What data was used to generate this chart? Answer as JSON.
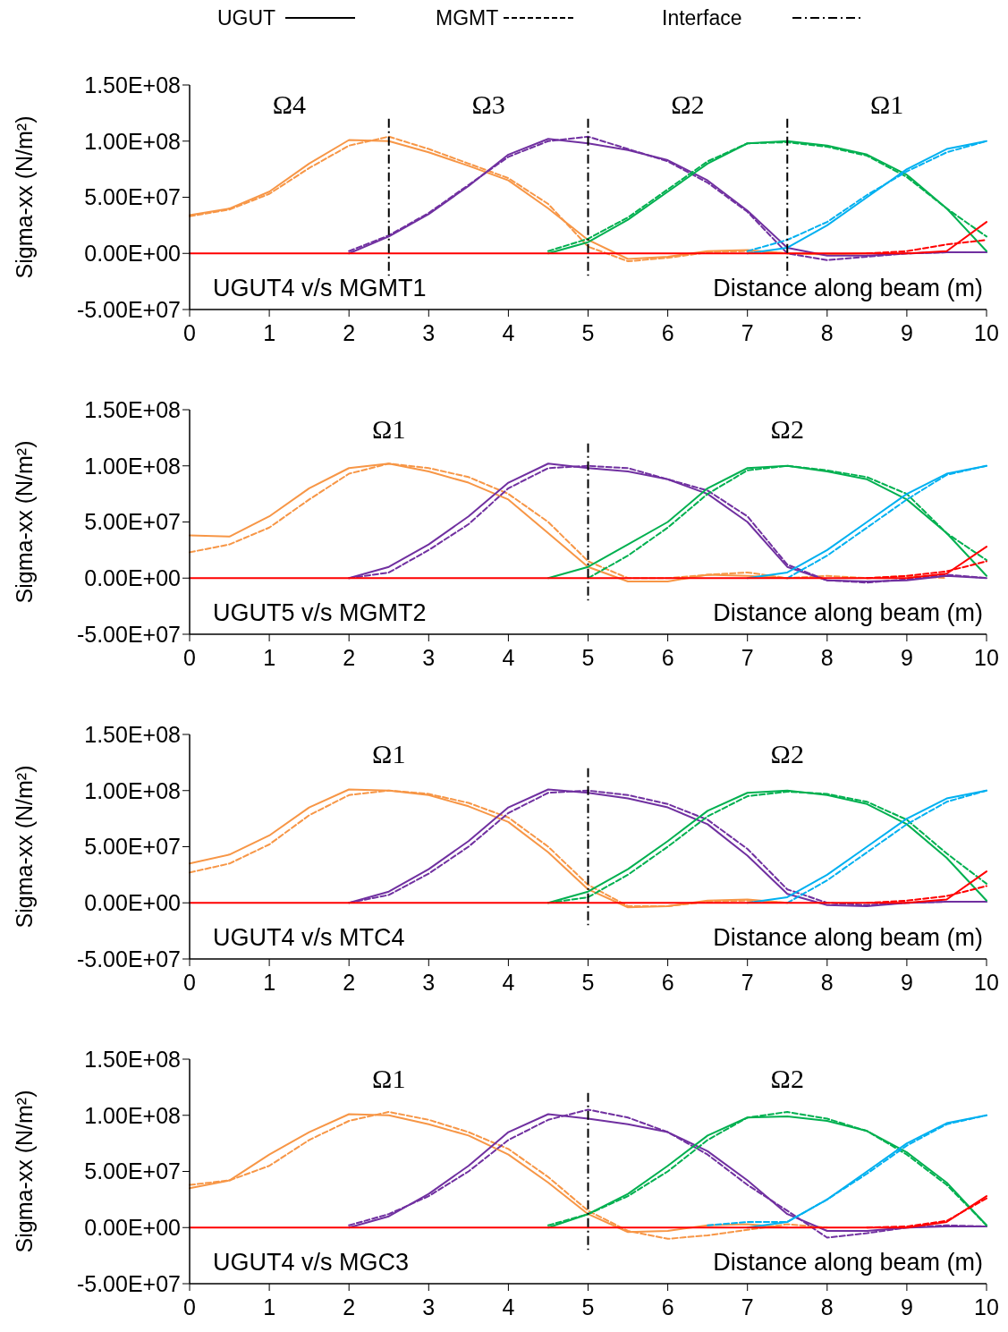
{
  "chart_data": [
    {
      "type": "line",
      "ylabel": "Sigma-xx (N/m²)",
      "xlabel": "Distance along beam (m)",
      "xlim": [
        0,
        10
      ],
      "xticks": [
        0,
        1,
        2,
        3,
        4,
        5,
        6,
        7,
        8,
        9,
        10
      ],
      "ylim": [
        -50000000.0,
        150000000.0
      ],
      "yticks": [
        {
          "value": -50000000.0,
          "label": "-5.00E+07"
        },
        {
          "value": 0,
          "label": "0.00E+00"
        },
        {
          "value": 50000000.0,
          "label": "5.00E+07"
        },
        {
          "value": 100000000.0,
          "label": "1.00E+08"
        },
        {
          "value": 150000000.0,
          "label": "1.50E+08"
        }
      ],
      "grid": false,
      "marker": "none",
      "x": [
        0,
        0.5,
        1,
        1.5,
        2,
        2.5,
        3,
        3.5,
        4,
        4.5,
        5,
        5.5,
        6,
        6.5,
        7,
        7.5,
        8,
        8.5,
        9,
        9.5,
        10
      ],
      "annotations": [
        "UGUT4 v/s MGMT1",
        "Ω4",
        "Ω3",
        "Ω2",
        "Ω1",
        "UGUT",
        "MGMT",
        "Interface"
      ],
      "ref_lines": [
        {
          "axis": "x",
          "value": 2.5,
          "color": "#000000",
          "line_style": "dashdot"
        },
        {
          "axis": "x",
          "value": 5,
          "color": "#000000",
          "line_style": "dashdot"
        },
        {
          "axis": "x",
          "value": 7.5,
          "color": "#000000",
          "line_style": "dashdot"
        }
      ],
      "series": [
        {
          "color": "#f79646",
          "line_style": "solid",
          "values": [
            34000000.0,
            40000000.0,
            55000000.0,
            80000000.0,
            101000000.0,
            100000000.0,
            90000000.0,
            78000000.0,
            65000000.0,
            40000000.0,
            12000000.0,
            -5000000.0,
            -3000000.0,
            2000000.0,
            3000000.0,
            0,
            -1000000.0,
            0,
            null,
            null,
            null
          ]
        },
        {
          "color": "#f79646",
          "line_style": "dashed",
          "values": [
            33000000.0,
            39000000.0,
            53000000.0,
            76000000.0,
            96000000.0,
            104000000.0,
            93000000.0,
            80000000.0,
            67000000.0,
            44000000.0,
            6000000.0,
            -7000000.0,
            -4000000.0,
            1000000.0,
            2000000.0,
            0,
            null,
            null,
            null,
            null,
            null
          ]
        },
        {
          "color": "#7030a0",
          "line_style": "solid",
          "values": [
            null,
            null,
            null,
            null,
            0,
            15000000.0,
            35000000.0,
            60000000.0,
            88000000.0,
            102000000.0,
            98000000.0,
            92000000.0,
            83000000.0,
            65000000.0,
            38000000.0,
            5000000.0,
            -2000000.0,
            -2000000.0,
            0,
            1000000.0,
            1000000.0
          ]
        },
        {
          "color": "#7030a0",
          "line_style": "dashed",
          "values": [
            null,
            null,
            null,
            null,
            2000000.0,
            16000000.0,
            36000000.0,
            61000000.0,
            86000000.0,
            100000000.0,
            104000000.0,
            93000000.0,
            82000000.0,
            63000000.0,
            37000000.0,
            0,
            -6000000.0,
            -3000000.0,
            0,
            1000000.0,
            1000000.0
          ]
        },
        {
          "color": "#00b050",
          "line_style": "solid",
          "values": [
            null,
            null,
            null,
            null,
            null,
            null,
            null,
            null,
            null,
            0,
            10000000.0,
            30000000.0,
            55000000.0,
            80000000.0,
            98000000.0,
            100000000.0,
            96000000.0,
            88000000.0,
            70000000.0,
            40000000.0,
            2000000.0
          ]
        },
        {
          "color": "#00b050",
          "line_style": "dashed",
          "values": [
            null,
            null,
            null,
            null,
            null,
            null,
            null,
            null,
            null,
            2000000.0,
            13000000.0,
            32000000.0,
            57000000.0,
            82000000.0,
            98000000.0,
            99000000.0,
            95000000.0,
            87000000.0,
            68000000.0,
            40000000.0,
            15000000.0
          ]
        },
        {
          "color": "#00b0f0",
          "line_style": "solid",
          "values": [
            null,
            null,
            null,
            null,
            null,
            null,
            null,
            null,
            null,
            null,
            null,
            null,
            null,
            null,
            0,
            5000000.0,
            25000000.0,
            50000000.0,
            75000000.0,
            93000000.0,
            100000000.0
          ]
        },
        {
          "color": "#00b0f0",
          "line_style": "dashed",
          "values": [
            null,
            null,
            null,
            null,
            null,
            null,
            null,
            null,
            null,
            null,
            null,
            null,
            null,
            null,
            2000000.0,
            12000000.0,
            28000000.0,
            52000000.0,
            73000000.0,
            90000000.0,
            100000000.0
          ]
        },
        {
          "color": "#ff0000",
          "line_style": "solid",
          "values": [
            0,
            0,
            0,
            0,
            0,
            0,
            0,
            0,
            0,
            0,
            0,
            0,
            0,
            0,
            0,
            0,
            0,
            0,
            0,
            2000000.0,
            28000000.0
          ]
        },
        {
          "color": "#ff0000",
          "line_style": "dashed",
          "values": [
            null,
            null,
            null,
            null,
            null,
            null,
            null,
            null,
            null,
            null,
            null,
            null,
            null,
            null,
            null,
            null,
            null,
            0,
            2000000.0,
            8000000.0,
            12000000.0
          ]
        }
      ]
    },
    {
      "type": "line",
      "ylabel": "Sigma-xx (N/m²)",
      "xlabel": "Distance along beam (m)",
      "xlim": [
        0,
        10
      ],
      "xticks": [
        0,
        1,
        2,
        3,
        4,
        5,
        6,
        7,
        8,
        9,
        10
      ],
      "ylim": [
        -50000000.0,
        150000000.0
      ],
      "yticks": [
        {
          "value": -50000000.0,
          "label": "-5.00E+07"
        },
        {
          "value": 0,
          "label": "0.00E+00"
        },
        {
          "value": 50000000.0,
          "label": "5.00E+07"
        },
        {
          "value": 100000000.0,
          "label": "1.00E+08"
        },
        {
          "value": 150000000.0,
          "label": "1.50E+08"
        }
      ],
      "grid": false,
      "marker": "none",
      "x": [
        0,
        0.5,
        1,
        1.5,
        2,
        2.5,
        3,
        3.5,
        4,
        4.5,
        5,
        5.5,
        6,
        6.5,
        7,
        7.5,
        8,
        8.5,
        9,
        9.5,
        10
      ],
      "annotations": [
        "UGUT5 v/s MGMT2",
        "Ω1",
        "Ω2"
      ],
      "ref_lines": [
        {
          "axis": "x",
          "value": 5,
          "color": "#000000",
          "line_style": "dashdot"
        }
      ],
      "series": [
        {
          "color": "#f79646",
          "line_style": "solid",
          "values": [
            38000000.0,
            37000000.0,
            55000000.0,
            80000000.0,
            98000000.0,
            102000000.0,
            95000000.0,
            85000000.0,
            70000000.0,
            40000000.0,
            10000000.0,
            -3000000.0,
            -3000000.0,
            3000000.0,
            2000000.0,
            0,
            null,
            null,
            null,
            null,
            null
          ]
        },
        {
          "color": "#f79646",
          "line_style": "dashed",
          "values": [
            23000000.0,
            30000000.0,
            45000000.0,
            70000000.0,
            93000000.0,
            102000000.0,
            98000000.0,
            90000000.0,
            75000000.0,
            50000000.0,
            15000000.0,
            0,
            0,
            3000000.0,
            5000000.0,
            0,
            2000000.0,
            0,
            2000000.0,
            0,
            null
          ]
        },
        {
          "color": "#7030a0",
          "line_style": "solid",
          "values": [
            null,
            null,
            null,
            null,
            0,
            10000000.0,
            30000000.0,
            55000000.0,
            85000000.0,
            102000000.0,
            98000000.0,
            95000000.0,
            88000000.0,
            75000000.0,
            50000000.0,
            10000000.0,
            -2000000.0,
            -3000000.0,
            -2000000.0,
            2000000.0,
            0
          ]
        },
        {
          "color": "#7030a0",
          "line_style": "dashed",
          "values": [
            null,
            null,
            null,
            null,
            0,
            5000000.0,
            25000000.0,
            48000000.0,
            80000000.0,
            98000000.0,
            100000000.0,
            98000000.0,
            88000000.0,
            78000000.0,
            55000000.0,
            12000000.0,
            -2000000.0,
            -4000000.0,
            -1000000.0,
            3000000.0,
            0
          ]
        },
        {
          "color": "#00b050",
          "line_style": "solid",
          "values": [
            null,
            null,
            null,
            null,
            null,
            null,
            null,
            null,
            null,
            0,
            10000000.0,
            30000000.0,
            50000000.0,
            80000000.0,
            98000000.0,
            100000000.0,
            95000000.0,
            88000000.0,
            70000000.0,
            40000000.0,
            2000000.0
          ]
        },
        {
          "color": "#00b050",
          "line_style": "dashed",
          "values": [
            null,
            null,
            null,
            null,
            null,
            null,
            null,
            null,
            null,
            null,
            0,
            20000000.0,
            45000000.0,
            75000000.0,
            96000000.0,
            100000000.0,
            96000000.0,
            90000000.0,
            75000000.0,
            40000000.0,
            16000000.0
          ]
        },
        {
          "color": "#00b0f0",
          "line_style": "solid",
          "values": [
            null,
            null,
            null,
            null,
            null,
            null,
            null,
            null,
            null,
            null,
            null,
            null,
            null,
            null,
            0,
            5000000.0,
            25000000.0,
            50000000.0,
            75000000.0,
            93000000.0,
            100000000.0
          ]
        },
        {
          "color": "#00b0f0",
          "line_style": "dashed",
          "values": [
            null,
            null,
            null,
            null,
            null,
            null,
            null,
            null,
            null,
            null,
            null,
            null,
            null,
            null,
            null,
            0,
            20000000.0,
            45000000.0,
            70000000.0,
            92000000.0,
            100000000.0
          ]
        },
        {
          "color": "#ff0000",
          "line_style": "solid",
          "values": [
            0,
            0,
            0,
            0,
            0,
            0,
            0,
            0,
            0,
            0,
            0,
            0,
            0,
            0,
            0,
            0,
            0,
            0,
            0,
            4000000.0,
            28000000.0
          ]
        },
        {
          "color": "#ff0000",
          "line_style": "dashed",
          "values": [
            null,
            null,
            null,
            null,
            null,
            null,
            null,
            null,
            null,
            null,
            null,
            null,
            null,
            null,
            null,
            null,
            null,
            0,
            2000000.0,
            6000000.0,
            15000000.0
          ]
        }
      ]
    },
    {
      "type": "line",
      "ylabel": "Sigma-xx (N/m²)",
      "xlabel": "Distance along beam (m)",
      "xlim": [
        0,
        10
      ],
      "xticks": [
        0,
        1,
        2,
        3,
        4,
        5,
        6,
        7,
        8,
        9,
        10
      ],
      "ylim": [
        -50000000.0,
        150000000.0
      ],
      "yticks": [
        {
          "value": -50000000.0,
          "label": "-5.00E+07"
        },
        {
          "value": 0,
          "label": "0.00E+00"
        },
        {
          "value": 50000000.0,
          "label": "5.00E+07"
        },
        {
          "value": 100000000.0,
          "label": "1.00E+08"
        },
        {
          "value": 150000000.0,
          "label": "1.50E+08"
        }
      ],
      "grid": false,
      "marker": "none",
      "x": [
        0,
        0.5,
        1,
        1.5,
        2,
        2.5,
        3,
        3.5,
        4,
        4.5,
        5,
        5.5,
        6,
        6.5,
        7,
        7.5,
        8,
        8.5,
        9,
        9.5,
        10
      ],
      "annotations": [
        "UGUT4 v/s MTC4",
        "Ω1",
        "Ω2"
      ],
      "ref_lines": [
        {
          "axis": "x",
          "value": 5,
          "color": "#000000",
          "line_style": "dashdot"
        }
      ],
      "series": [
        {
          "color": "#f79646",
          "line_style": "solid",
          "values": [
            35000000.0,
            43000000.0,
            60000000.0,
            85000000.0,
            101000000.0,
            100000000.0,
            96000000.0,
            86000000.0,
            72000000.0,
            45000000.0,
            12000000.0,
            -4000000.0,
            -3000000.0,
            2000000.0,
            3000000.0,
            0,
            null,
            null,
            null,
            null,
            null
          ]
        },
        {
          "color": "#f79646",
          "line_style": "dashed",
          "values": [
            27000000.0,
            35000000.0,
            52000000.0,
            78000000.0,
            96000000.0,
            100000000.0,
            97000000.0,
            89000000.0,
            76000000.0,
            50000000.0,
            16000000.0,
            -3000000.0,
            -3000000.0,
            1000000.0,
            2000000.0,
            0,
            null,
            null,
            null,
            null,
            null
          ]
        },
        {
          "color": "#7030a0",
          "line_style": "solid",
          "values": [
            null,
            null,
            null,
            null,
            0,
            10000000.0,
            30000000.0,
            55000000.0,
            85000000.0,
            101000000.0,
            98000000.0,
            93000000.0,
            85000000.0,
            70000000.0,
            42000000.0,
            8000000.0,
            -2000000.0,
            -3000000.0,
            0,
            1000000.0,
            1000000.0
          ]
        },
        {
          "color": "#7030a0",
          "line_style": "dashed",
          "values": [
            null,
            null,
            null,
            null,
            0,
            7000000.0,
            26000000.0,
            50000000.0,
            80000000.0,
            98000000.0,
            100000000.0,
            96000000.0,
            88000000.0,
            74000000.0,
            48000000.0,
            12000000.0,
            0,
            -2000000.0,
            0,
            1000000.0,
            1000000.0
          ]
        },
        {
          "color": "#00b050",
          "line_style": "solid",
          "values": [
            null,
            null,
            null,
            null,
            null,
            null,
            null,
            null,
            null,
            0,
            10000000.0,
            30000000.0,
            55000000.0,
            82000000.0,
            98000000.0,
            100000000.0,
            96000000.0,
            88000000.0,
            70000000.0,
            40000000.0,
            2000000.0
          ]
        },
        {
          "color": "#00b050",
          "line_style": "dashed",
          "values": [
            null,
            null,
            null,
            null,
            null,
            null,
            null,
            null,
            null,
            0,
            5000000.0,
            25000000.0,
            50000000.0,
            77000000.0,
            95000000.0,
            99000000.0,
            97000000.0,
            90000000.0,
            74000000.0,
            44000000.0,
            17000000.0
          ]
        },
        {
          "color": "#00b0f0",
          "line_style": "solid",
          "values": [
            null,
            null,
            null,
            null,
            null,
            null,
            null,
            null,
            null,
            null,
            null,
            null,
            null,
            null,
            0,
            5000000.0,
            25000000.0,
            50000000.0,
            75000000.0,
            93000000.0,
            100000000.0
          ]
        },
        {
          "color": "#00b0f0",
          "line_style": "dashed",
          "values": [
            null,
            null,
            null,
            null,
            null,
            null,
            null,
            null,
            null,
            null,
            null,
            null,
            null,
            null,
            null,
            0,
            20000000.0,
            45000000.0,
            70000000.0,
            90000000.0,
            100000000.0
          ]
        },
        {
          "color": "#ff0000",
          "line_style": "solid",
          "values": [
            0,
            0,
            0,
            0,
            0,
            0,
            0,
            0,
            0,
            0,
            0,
            0,
            0,
            0,
            0,
            0,
            0,
            0,
            0,
            3000000.0,
            28000000.0
          ]
        },
        {
          "color": "#ff0000",
          "line_style": "dashed",
          "values": [
            null,
            null,
            null,
            null,
            null,
            null,
            null,
            null,
            null,
            null,
            null,
            null,
            null,
            null,
            null,
            null,
            null,
            0,
            2000000.0,
            6000000.0,
            15000000.0
          ]
        }
      ]
    },
    {
      "type": "line",
      "ylabel": "Sigma-xx (N/m²)",
      "xlabel": "Distance along beam (m)",
      "xlim": [
        0,
        10
      ],
      "xticks": [
        0,
        1,
        2,
        3,
        4,
        5,
        6,
        7,
        8,
        9,
        10
      ],
      "ylim": [
        -50000000.0,
        150000000.0
      ],
      "yticks": [
        {
          "value": -50000000.0,
          "label": "-5.00E+07"
        },
        {
          "value": 0,
          "label": "0.00E+00"
        },
        {
          "value": 50000000.0,
          "label": "5.00E+07"
        },
        {
          "value": 100000000.0,
          "label": "1.00E+08"
        },
        {
          "value": 150000000.0,
          "label": "1.50E+08"
        }
      ],
      "grid": false,
      "marker": "none",
      "x": [
        0,
        0.5,
        1,
        1.5,
        2,
        2.5,
        3,
        3.5,
        4,
        4.5,
        5,
        5.5,
        6,
        6.5,
        7,
        7.5,
        8,
        8.5,
        9,
        9.5,
        10
      ],
      "annotations": [
        "UGUT4 v/s MGC3",
        "Ω1",
        "Ω2"
      ],
      "ref_lines": [
        {
          "axis": "x",
          "value": 5,
          "color": "#000000",
          "line_style": "dashdot"
        }
      ],
      "series": [
        {
          "color": "#f79646",
          "line_style": "solid",
          "values": [
            35000000.0,
            42000000.0,
            65000000.0,
            85000000.0,
            101000000.0,
            100000000.0,
            92000000.0,
            82000000.0,
            65000000.0,
            40000000.0,
            12000000.0,
            -4000000.0,
            -3000000.0,
            2000000.0,
            3000000.0,
            0,
            null,
            null,
            null,
            null,
            null
          ]
        },
        {
          "color": "#f79646",
          "line_style": "dashed",
          "values": [
            38000000.0,
            42000000.0,
            55000000.0,
            78000000.0,
            95000000.0,
            103000000.0,
            96000000.0,
            85000000.0,
            70000000.0,
            45000000.0,
            15000000.0,
            -3000000.0,
            -10000000.0,
            -7000000.0,
            -2000000.0,
            3000000.0,
            0,
            null,
            null,
            null,
            null
          ]
        },
        {
          "color": "#7030a0",
          "line_style": "solid",
          "values": [
            null,
            null,
            null,
            null,
            0,
            10000000.0,
            30000000.0,
            55000000.0,
            85000000.0,
            101000000.0,
            97000000.0,
            92000000.0,
            85000000.0,
            68000000.0,
            42000000.0,
            12000000.0,
            -3000000.0,
            -3000000.0,
            0,
            1000000.0,
            1000000.0
          ]
        },
        {
          "color": "#7030a0",
          "line_style": "dashed",
          "values": [
            null,
            null,
            null,
            null,
            2000000.0,
            12000000.0,
            28000000.0,
            50000000.0,
            78000000.0,
            96000000.0,
            105000000.0,
            98000000.0,
            85000000.0,
            65000000.0,
            38000000.0,
            15000000.0,
            -9000000.0,
            -5000000.0,
            0,
            2000000.0,
            1000000.0
          ]
        },
        {
          "color": "#00b050",
          "line_style": "solid",
          "values": [
            null,
            null,
            null,
            null,
            null,
            null,
            null,
            null,
            null,
            0,
            12000000.0,
            30000000.0,
            55000000.0,
            82000000.0,
            98000000.0,
            99000000.0,
            95000000.0,
            86000000.0,
            67000000.0,
            40000000.0,
            2000000.0
          ]
        },
        {
          "color": "#00b050",
          "line_style": "dashed",
          "values": [
            null,
            null,
            null,
            null,
            null,
            null,
            null,
            null,
            null,
            2000000.0,
            12000000.0,
            28000000.0,
            50000000.0,
            78000000.0,
            98000000.0,
            103000000.0,
            97000000.0,
            86000000.0,
            65000000.0,
            38000000.0,
            2000000.0
          ]
        },
        {
          "color": "#00b0f0",
          "line_style": "solid",
          "values": [
            null,
            null,
            null,
            null,
            null,
            null,
            null,
            null,
            null,
            null,
            null,
            null,
            null,
            null,
            0,
            5000000.0,
            25000000.0,
            50000000.0,
            75000000.0,
            93000000.0,
            100000000.0
          ]
        },
        {
          "color": "#00b0f0",
          "line_style": "dashed",
          "values": [
            null,
            null,
            null,
            null,
            null,
            null,
            null,
            null,
            null,
            null,
            null,
            null,
            null,
            2000000.0,
            5000000.0,
            5000000.0,
            25000000.0,
            48000000.0,
            73000000.0,
            92000000.0,
            100000000.0
          ]
        },
        {
          "color": "#ff0000",
          "line_style": "solid",
          "values": [
            0,
            0,
            0,
            0,
            0,
            0,
            0,
            0,
            0,
            0,
            0,
            0,
            0,
            0,
            0,
            0,
            0,
            0,
            0,
            5000000.0,
            28000000.0
          ]
        },
        {
          "color": "#ff0000",
          "line_style": "dashed",
          "values": [
            null,
            null,
            null,
            null,
            null,
            null,
            null,
            null,
            null,
            null,
            null,
            null,
            null,
            null,
            null,
            null,
            null,
            0,
            1000000.0,
            6000000.0,
            26000000.0
          ]
        }
      ]
    }
  ]
}
